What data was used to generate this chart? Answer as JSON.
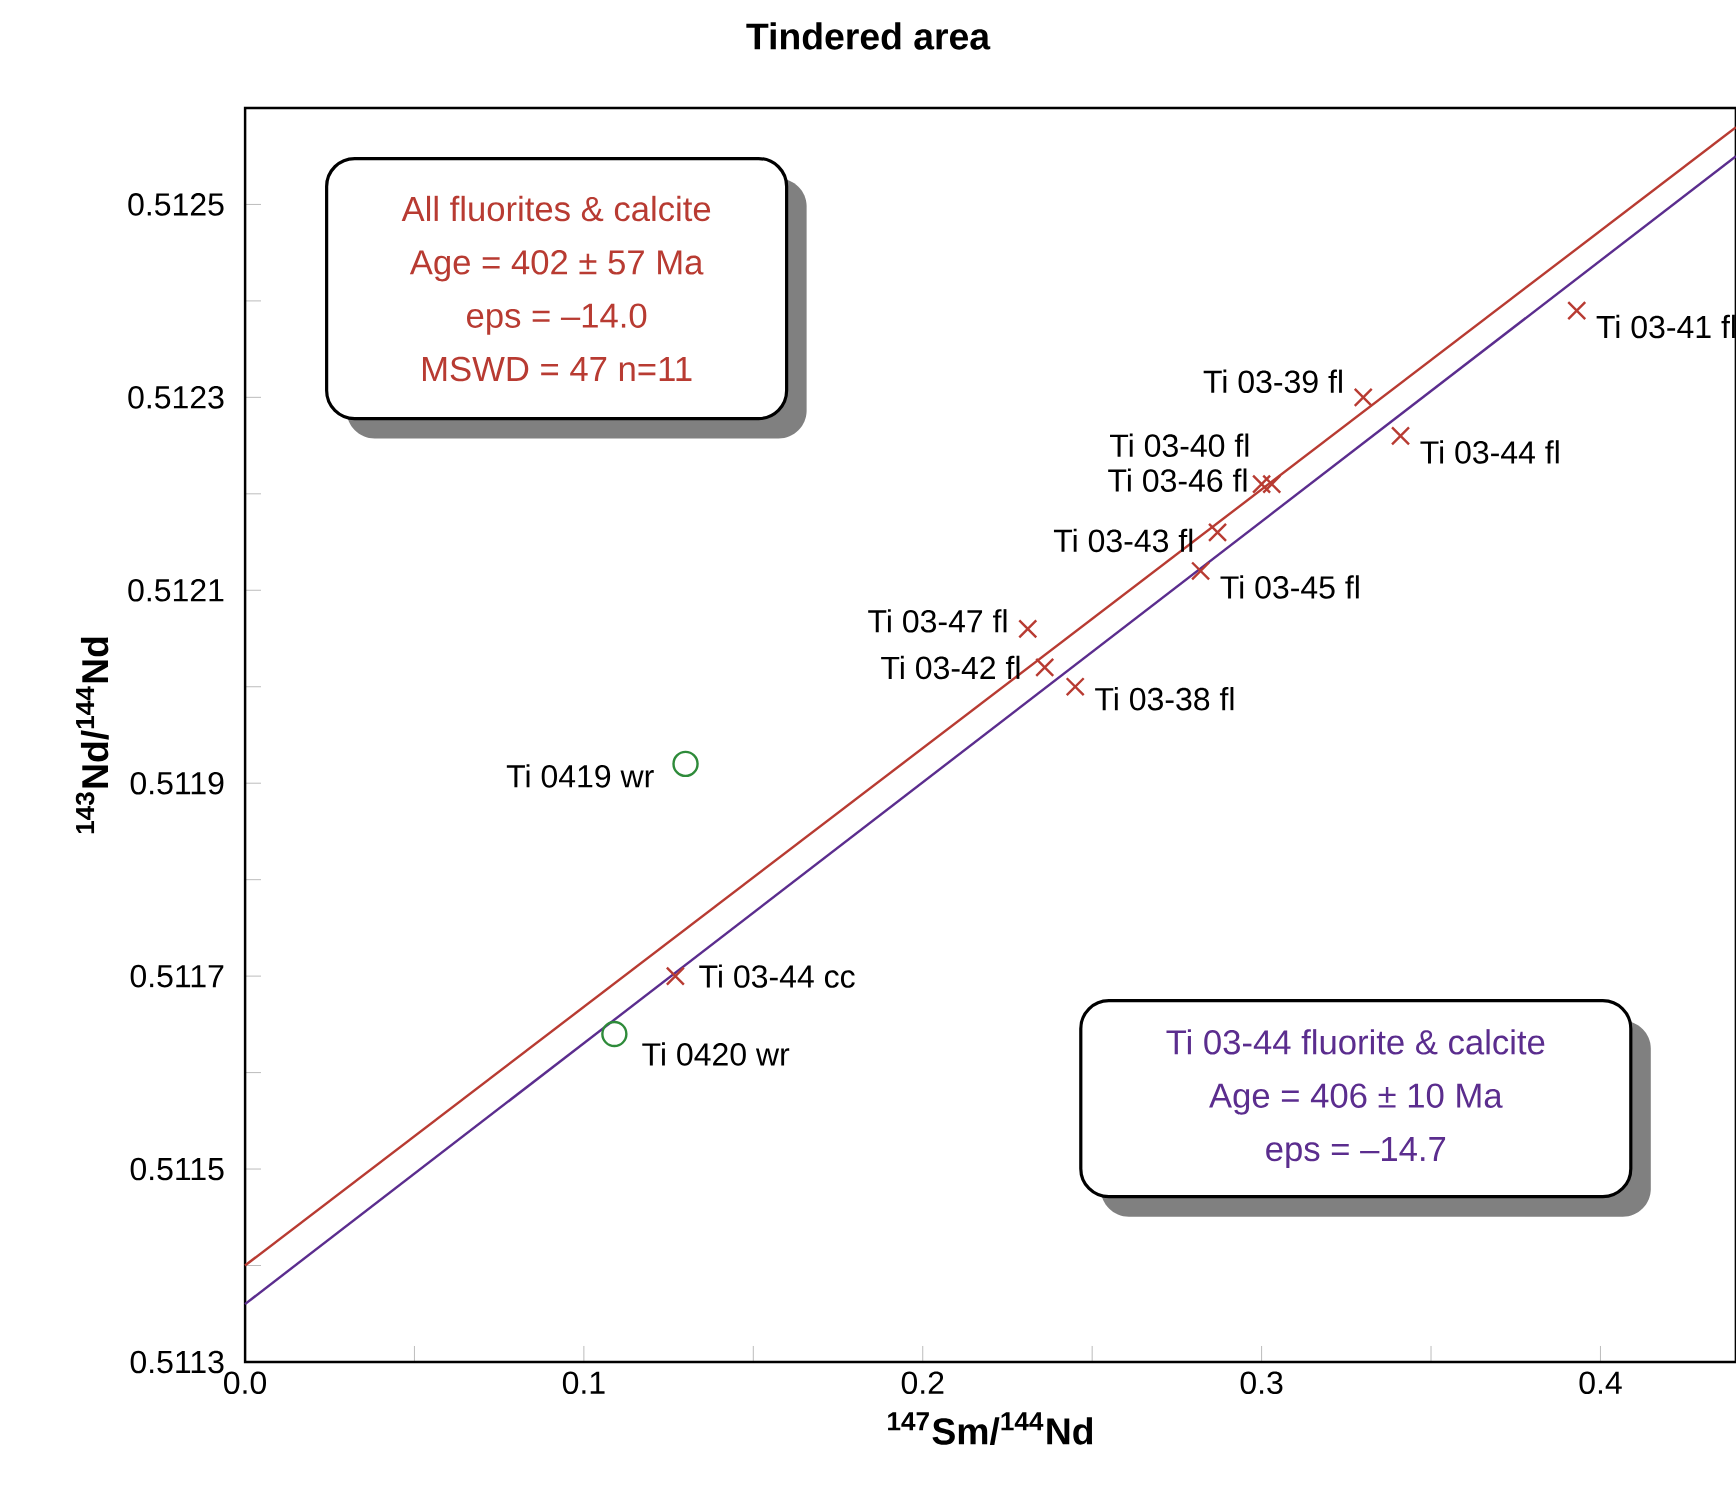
{
  "chart_data": {
    "type": "scatter",
    "title": "Tindered area",
    "xlabel": "$^{147}$Sm/$^{144}$Nd",
    "ylabel": "$^{143}$Nd/$^{144}$Nd",
    "xlim": [
      0,
      0.44
    ],
    "ylim": [
      0.5113,
      0.5126
    ],
    "xticks": [
      {
        "value": 0,
        "label": "0.0"
      },
      {
        "value": 0.05,
        "label": null
      },
      0.1,
      {
        "value": 0.15,
        "label": null
      },
      0.2,
      {
        "value": 0.25,
        "label": null
      },
      0.3,
      {
        "value": 0.35,
        "label": null
      },
      0.4
    ],
    "yticks": [
      0.5113,
      {
        "value": 0.5114,
        "label": null
      },
      0.5115,
      {
        "value": 0.5116,
        "label": null
      },
      0.5117,
      {
        "value": 0.5118,
        "label": null
      },
      0.5119,
      {
        "value": 0.512,
        "label": null
      },
      0.5121,
      {
        "value": 0.5122,
        "label": null
      },
      0.5123,
      {
        "value": 0.5124,
        "label": null
      },
      0.5125
    ],
    "grid": false,
    "series": [
      {
        "color": "#b83b32",
        "marker": "cross",
        "x": [
          0.393,
          0.33,
          0.341,
          0.3,
          0.303,
          0.287,
          0.282,
          0.231,
          0.236,
          0.245,
          0.127
        ],
        "values": [
          0.51239,
          0.5123,
          0.51226,
          0.51221,
          0.51221,
          0.51216,
          0.51212,
          0.51206,
          0.51202,
          0.512,
          0.5117
        ]
      },
      {
        "color": "#2e8b3a",
        "marker": "circle",
        "x": [
          0.13,
          0.109
        ],
        "values": [
          0.51192,
          0.51164
        ]
      },
      {
        "type": "line",
        "color": "#b83b32",
        "marker": "none",
        "x": [
          0,
          0.44
        ],
        "values": [
          0.5114,
          0.51258
        ]
      },
      {
        "type": "line",
        "color": "#5b2d8e",
        "marker": "none",
        "x": [
          0,
          0.44
        ],
        "values": [
          0.51136,
          0.51255
        ]
      }
    ],
    "annotations": [
      {
        "text": "Ti 03-41 fl",
        "x": 0.393,
        "y": 0.51239
      },
      {
        "text": "Ti 03-39 fl",
        "x": 0.33,
        "y": 0.5123
      },
      {
        "text": "Ti 03-44 fl",
        "x": 0.341,
        "y": 0.51226
      },
      {
        "text": "Ti 03-40 fl",
        "x": 0.3,
        "y": 0.51221
      },
      {
        "text": "Ti 03-46 fl",
        "x": 0.303,
        "y": 0.51221
      },
      {
        "text": "Ti 03-43 fl",
        "x": 0.287,
        "y": 0.51216
      },
      {
        "text": "Ti 03-45 fl",
        "x": 0.282,
        "y": 0.51212
      },
      {
        "text": "Ti 03-47 fl",
        "x": 0.231,
        "y": 0.51206
      },
      {
        "text": "Ti 03-42 fl",
        "x": 0.236,
        "y": 0.51202
      },
      {
        "text": "Ti 03-38 fl",
        "x": 0.245,
        "y": 0.512
      },
      {
        "text": "Ti 03-44 cc",
        "x": 0.127,
        "y": 0.5117
      },
      {
        "text": "Ti 0419 wr",
        "x": 0.13,
        "y": 0.51192
      },
      {
        "text": "Ti 0420 wr",
        "x": 0.109,
        "y": 0.51164
      },
      "All fluorites & calcite",
      "Age = 402 ± 57 Ma",
      "eps = –14.0",
      "MSWD = 47 n=11",
      "Ti 03-44 fluorite & calcite",
      "Age = 406 ± 10 Ma",
      "eps = –14.7"
    ]
  }
}
